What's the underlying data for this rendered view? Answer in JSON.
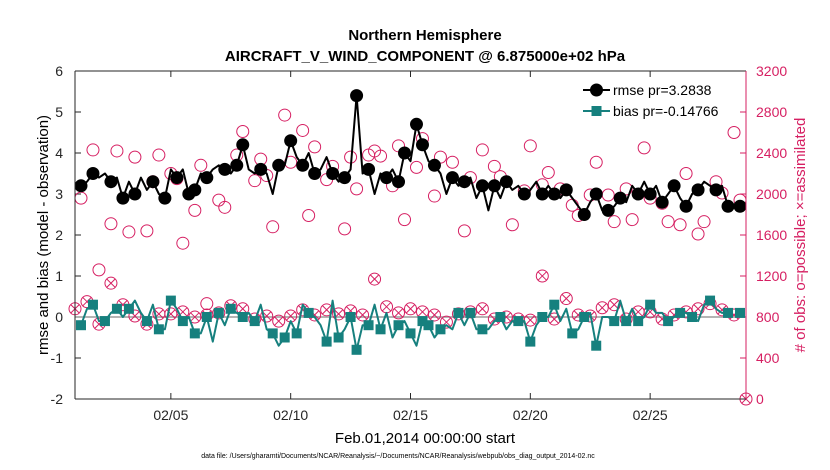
{
  "chart_data": {
    "type": "line",
    "title": "Northern Hemisphere",
    "subtitle": "AIRCRAFT_V_WIND_COMPONENT @ 6.875000e+02 hPa",
    "xlabel": "Feb.01,2014 00:00:00 start",
    "ylabel_left": "rmse and bias (model - observation)",
    "ylabel_right": "# of obs: o=possible; ×=assimilated",
    "xlim": [
      1.0,
      29.0
    ],
    "ylim_left": [
      -2,
      6
    ],
    "ylim_right": [
      0,
      3200
    ],
    "x_ticks": [
      5,
      10,
      15,
      20,
      25
    ],
    "x_tick_labels": [
      "02/05",
      "02/10",
      "02/15",
      "02/20",
      "02/25"
    ],
    "y_ticks_left": [
      -2,
      -1,
      0,
      1,
      2,
      3,
      4,
      5,
      6
    ],
    "y_tick_labels_left": [
      "-2",
      "-1",
      "0",
      "1",
      "2",
      "3",
      "4",
      "5",
      "6"
    ],
    "y_ticks_right": [
      0,
      400,
      800,
      1200,
      1600,
      2000,
      2400,
      2800,
      3200
    ],
    "y_tick_labels_right": [
      "0",
      "400",
      "800",
      "1200",
      "1600",
      "2000",
      "2400",
      "2800",
      "3200"
    ],
    "footnote": "data file: /Users/gharamti/Documents/NCAR/Reanalysis/~/Documents/NCAR/Reanalysis/webpub/obs_diag_output_2014-02.nc",
    "x_start": 1.25,
    "x_step": 0.25,
    "series": [
      {
        "name": "rmse",
        "legend_label": "rmse pr=3.2838",
        "color": "#000000",
        "marker": "circle",
        "values": [
          3.2,
          3.3,
          3.5,
          3.4,
          3.5,
          3.3,
          3.4,
          2.9,
          3.3,
          3.0,
          3.4,
          3.1,
          3.3,
          3.0,
          2.9,
          3.6,
          3.4,
          3.6,
          3.0,
          3.1,
          3.5,
          3.4,
          3.6,
          3.7,
          3.6,
          3.5,
          3.7,
          4.2,
          3.6,
          3.5,
          3.6,
          3.5,
          3.0,
          3.7,
          3.7,
          4.3,
          3.9,
          3.7,
          4.0,
          3.5,
          3.6,
          3.9,
          3.5,
          3.3,
          3.4,
          3.6,
          5.4,
          3.5,
          3.6,
          3.0,
          3.5,
          3.4,
          3.6,
          3.3,
          4.0,
          3.8,
          4.7,
          4.2,
          3.8,
          3.7,
          3.5,
          3.0,
          3.4,
          3.2,
          3.3,
          3.4,
          2.9,
          3.2,
          2.6,
          3.2,
          2.9,
          3.3,
          3.1,
          3.2,
          3.0,
          3.1,
          3.3,
          3.0,
          3.2,
          3.0,
          2.9,
          3.1,
          2.9,
          2.7,
          2.5,
          2.8,
          3.0,
          2.6,
          2.6,
          2.7,
          2.9,
          2.8,
          3.2,
          3.0,
          3.3,
          3.0,
          3.2,
          2.8,
          3.0,
          3.2,
          2.9,
          2.7,
          3.0,
          3.1,
          3.3,
          3.2,
          3.1,
          3.2,
          2.7
        ],
        "markers_x": [
          1.25,
          1.75,
          2.5,
          3.0,
          3.5,
          4.25,
          4.75,
          5.25,
          5.75,
          6.0,
          6.5,
          7.25,
          7.75,
          8.0,
          8.75,
          9.5,
          10.0,
          10.5,
          11.0,
          11.75,
          12.25,
          12.75,
          13.25,
          14.0,
          14.5,
          14.75,
          15.25,
          15.5,
          16.0,
          16.75,
          17.25,
          18.0,
          18.5,
          19.0,
          19.75,
          20.5,
          21.0,
          21.5,
          22.25,
          22.75,
          23.25,
          23.75,
          24.5,
          25.0,
          25.5,
          26.0,
          26.5,
          27.0,
          27.75,
          28.25,
          28.75
        ]
      },
      {
        "name": "bias",
        "legend_label": "bias pr=-0.14766",
        "color": "#16807e",
        "marker": "square",
        "values": [
          -0.2,
          0.2,
          0.3,
          -0.1,
          -0.1,
          0.1,
          0.2,
          0.0,
          0.2,
          0.4,
          0.1,
          -0.1,
          0.3,
          -0.3,
          -0.3,
          0.4,
          0.2,
          -0.1,
          0.0,
          -0.4,
          -0.4,
          0.0,
          -0.6,
          0.1,
          -0.2,
          0.2,
          0.1,
          0.0,
          0.1,
          -0.1,
          0.3,
          -0.3,
          -0.4,
          -0.7,
          -0.5,
          -0.1,
          -0.4,
          0.3,
          0.1,
          0.0,
          -0.2,
          -0.6,
          0.4,
          -0.5,
          -0.3,
          0.0,
          -0.8,
          -0.2,
          -0.2,
          0.3,
          -0.3,
          0.1,
          -0.5,
          -0.2,
          -0.1,
          -0.4,
          -0.7,
          -0.1,
          -0.2,
          -0.5,
          -0.3,
          -0.2,
          -0.3,
          0.1,
          -0.2,
          0.1,
          -0.3,
          -0.3,
          -0.3,
          -0.1,
          0.0,
          -0.3,
          -0.1,
          -0.1,
          -0.1,
          -0.6,
          -0.2,
          0.0,
          0.0,
          0.3,
          -0.1,
          0.2,
          -0.4,
          -0.3,
          0.0,
          0.1,
          -0.7,
          0.0,
          0.0,
          -0.1,
          0.4,
          -0.1,
          0.2,
          -0.1,
          0.0,
          0.3,
          0.1,
          0.1,
          -0.1,
          0.0,
          0.1,
          0.1,
          0.0,
          -0.1,
          0.3,
          0.4,
          0.2,
          0.1,
          0.1
        ],
        "markers_x": [
          1.25,
          1.75,
          2.25,
          2.75,
          3.25,
          4.0,
          4.5,
          5.0,
          5.5,
          6.0,
          6.5,
          7.0,
          7.5,
          8.0,
          8.5,
          9.25,
          9.75,
          10.25,
          10.75,
          11.5,
          12.0,
          12.5,
          12.75,
          13.25,
          13.75,
          14.5,
          15.0,
          15.5,
          15.75,
          16.25,
          17.0,
          17.5,
          18.0,
          18.75,
          19.5,
          20.0,
          20.5,
          21.0,
          21.75,
          22.25,
          22.75,
          23.5,
          24.0,
          24.5,
          25.0,
          25.75,
          26.25,
          26.75,
          27.5,
          28.25,
          28.75
        ]
      }
    ],
    "obs_possible": {
      "name": "possible",
      "color": "#d61f62",
      "x": [
        1.25,
        1.75,
        2.0,
        2.5,
        2.75,
        3.25,
        3.5,
        4.0,
        4.25,
        4.5,
        5.0,
        5.25,
        5.5,
        6.0,
        6.25,
        6.5,
        7.0,
        7.25,
        7.75,
        8.0,
        8.5,
        8.75,
        9.0,
        9.25,
        9.75,
        10.0,
        10.5,
        10.75,
        11.0,
        11.5,
        11.75,
        12.25,
        12.5,
        12.75,
        13.25,
        13.5,
        13.75,
        14.25,
        14.5,
        14.75,
        15.25,
        15.5,
        16.0,
        16.25,
        16.75,
        17.25,
        17.5,
        18.0,
        18.5,
        18.75,
        19.25,
        19.75,
        20.0,
        20.5,
        20.75,
        21.25,
        21.75,
        22.0,
        22.5,
        22.75,
        23.25,
        23.5,
        24.0,
        24.25,
        24.75,
        25.0,
        25.5,
        25.75,
        26.25,
        26.5,
        27.0,
        27.25,
        27.75,
        28.0,
        28.5,
        28.75
      ],
      "values": [
        1960,
        2430,
        1260,
        1710,
        2420,
        1630,
        2360,
        1640,
        2120,
        2380,
        2200,
        2150,
        1520,
        1840,
        2280,
        930,
        1940,
        1870,
        2380,
        2610,
        2130,
        2340,
        2180,
        1680,
        2770,
        2310,
        2620,
        1790,
        2460,
        2140,
        2270,
        1660,
        2360,
        2050,
        2380,
        2420,
        2370,
        2080,
        2470,
        1750,
        2260,
        2540,
        1980,
        2360,
        2310,
        1640,
        2160,
        2430,
        2270,
        2170,
        1700,
        2030,
        2470,
        2090,
        2210,
        2050,
        1890,
        1790,
        1990,
        2310,
        1990,
        1730,
        2050,
        1750,
        2450,
        1960,
        1910,
        1730,
        1700,
        2200,
        1610,
        1730,
        2120,
        2010,
        2600,
        1940
      ]
    },
    "obs_assimilated": {
      "name": "assimilated",
      "color": "#d61f62",
      "x": [
        1.0,
        1.5,
        2.0,
        2.5,
        3.0,
        3.5,
        4.0,
        4.5,
        5.0,
        5.5,
        6.0,
        6.5,
        7.0,
        7.5,
        8.0,
        8.5,
        9.0,
        9.5,
        10.0,
        10.5,
        11.0,
        11.5,
        12.0,
        12.5,
        13.0,
        13.5,
        14.0,
        14.5,
        15.0,
        15.5,
        16.0,
        16.5,
        17.0,
        17.5,
        18.0,
        18.5,
        19.0,
        19.5,
        20.0,
        20.5,
        21.0,
        21.5,
        22.0,
        22.5,
        23.0,
        23.5,
        24.0,
        24.5,
        25.0,
        25.5,
        26.0,
        26.5,
        27.0,
        27.5,
        28.0,
        28.5,
        29.0
      ],
      "values": [
        880,
        950,
        730,
        1130,
        920,
        810,
        730,
        830,
        830,
        850,
        800,
        820,
        840,
        910,
        880,
        780,
        810,
        760,
        810,
        870,
        820,
        870,
        830,
        860,
        820,
        1170,
        900,
        840,
        880,
        850,
        820,
        750,
        830,
        850,
        880,
        780,
        800,
        780,
        770,
        1200,
        780,
        980,
        820,
        810,
        890,
        920,
        780,
        850,
        850,
        780,
        820,
        850,
        880,
        930,
        870,
        820,
        0
      ]
    }
  }
}
